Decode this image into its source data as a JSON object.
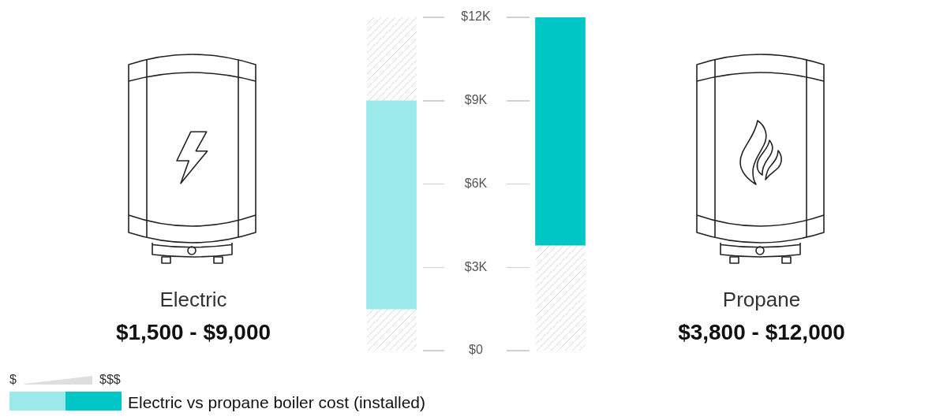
{
  "chart_data": {
    "type": "bar",
    "title": "Electric vs propane boiler cost (installed)",
    "categories": [
      "Electric",
      "Propane"
    ],
    "base": [
      1500,
      3800
    ],
    "values": [
      7500,
      8200
    ],
    "colors": [
      "#9be9e9",
      "#00c6c6"
    ],
    "ylim": [
      0,
      12000
    ],
    "yticks": [
      {
        "value": 0,
        "label": "$0"
      },
      {
        "value": 3000,
        "label": "$3K"
      },
      {
        "value": 6000,
        "label": "$6K"
      },
      {
        "value": 9000,
        "label": "$9K"
      },
      {
        "value": 12000,
        "label": "$12K"
      }
    ],
    "annotations": [
      "$",
      "$$$",
      "$1,500 - $9,000",
      "$3,800 - $12,000"
    ]
  }
}
